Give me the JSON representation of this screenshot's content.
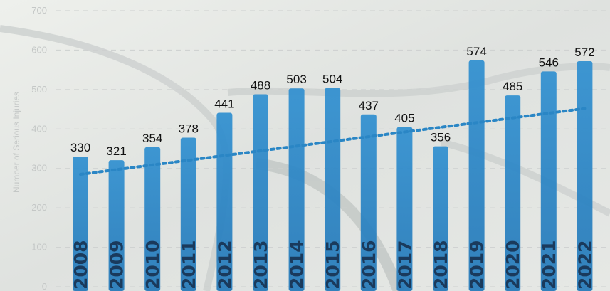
{
  "chart_data": {
    "type": "bar",
    "categories": [
      "2008",
      "2009",
      "2010",
      "2011",
      "2012",
      "2013",
      "2014",
      "2015",
      "2016",
      "2017",
      "2018",
      "2019",
      "2020",
      "2021",
      "2022"
    ],
    "values": [
      330,
      321,
      354,
      378,
      441,
      488,
      503,
      504,
      437,
      405,
      356,
      574,
      485,
      546,
      572
    ],
    "ylabel": "Number of Serious Injuries",
    "ylim": [
      0,
      700
    ],
    "yticks": [
      0,
      100,
      200,
      300,
      400,
      500,
      600,
      700
    ],
    "trendline": {
      "style": "dotted",
      "from": 285,
      "to": 452
    },
    "grid": true,
    "bar_color": "#2a86c5",
    "trend_color": "#2a86c5"
  }
}
